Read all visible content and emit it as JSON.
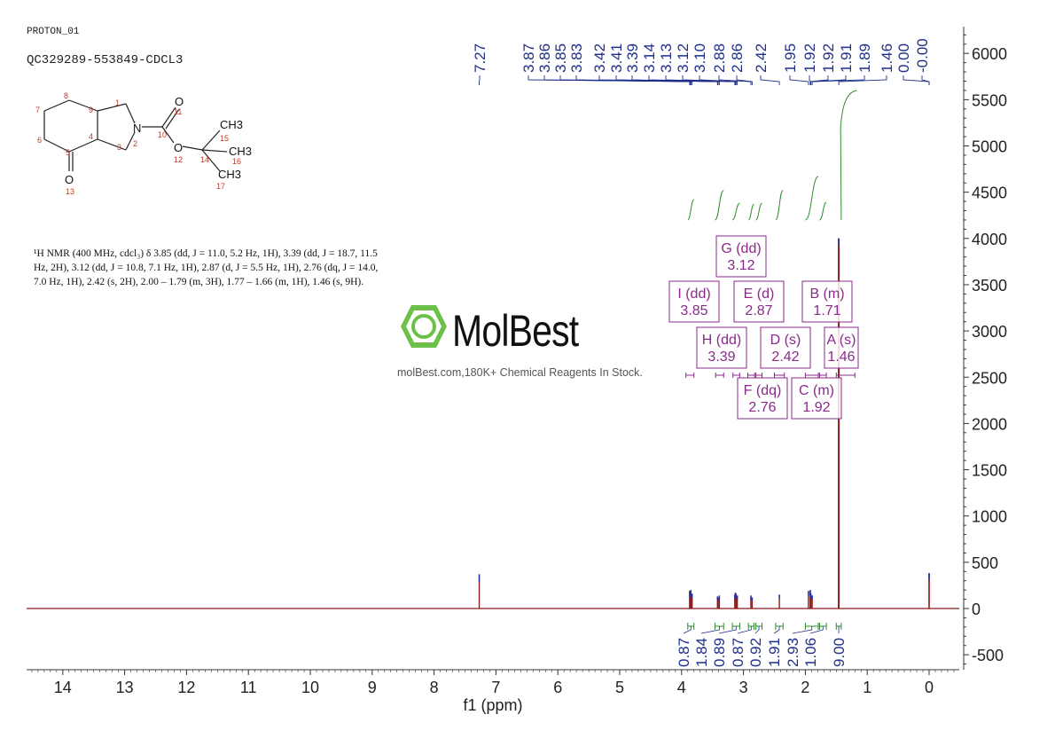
{
  "header": {
    "experiment": "PROTON_01",
    "sample": "QC329289-553849-CDCL3"
  },
  "description": "¹H NMR (400 MHz, cdcl₃) δ 3.85 (dd, J = 11.0, 5.2 Hz, 1H), 3.39 (dd, J = 18.7, 11.5 Hz, 2H), 3.12 (dd, J = 10.8, 7.1 Hz, 1H), 2.87 (d, J = 5.5 Hz, 1H), 2.76 (dq, J = 14.0, 7.0 Hz, 1H), 2.42 (s, 2H), 2.00 – 1.79 (m, 3H), 1.77 – 1.66 (m, 1H), 1.46 (s, 9H).",
  "watermark": {
    "brand": "MolBest",
    "tagline": "molBest.com,180K+ Chemical Reagents In Stock."
  },
  "structure": {
    "atoms": [
      {
        "label": "1"
      },
      {
        "label": "2"
      },
      {
        "label": "3"
      },
      {
        "label": "4"
      },
      {
        "label": "5"
      },
      {
        "label": "6"
      },
      {
        "label": "7"
      },
      {
        "label": "8"
      },
      {
        "label": "9"
      },
      {
        "label": "10"
      },
      {
        "label": "11"
      },
      {
        "label": "12"
      },
      {
        "label": "13"
      },
      {
        "label": "14"
      },
      {
        "label": "15"
      },
      {
        "label": "16"
      },
      {
        "label": "17"
      }
    ],
    "element_labels": [
      "N",
      "O",
      "O",
      "O",
      "CH3",
      "CH3",
      "CH3"
    ]
  },
  "colors": {
    "spectrum": "#8b1a1a",
    "integral": "#2e8b2e",
    "peak_labels": "#1f2f8a",
    "multiplet": "#8a2a8a",
    "brand_green": "#6cc04a"
  },
  "chart_data": {
    "type": "line",
    "title": "",
    "xlabel": "f1 (ppm)",
    "ylabel": "",
    "x_reversed": true,
    "xlim": [
      14.5,
      -0.5
    ],
    "ylim": [
      -650,
      6300
    ],
    "x_ticks": [
      14,
      13,
      12,
      11,
      10,
      9,
      8,
      7,
      6,
      5,
      4,
      3,
      2,
      1,
      0
    ],
    "y_ticks": [
      6000,
      5500,
      5000,
      4500,
      4000,
      3500,
      3000,
      2500,
      2000,
      1500,
      1000,
      500,
      0,
      -500
    ],
    "peaks": [
      {
        "ppm": 7.27,
        "height": 370
      },
      {
        "ppm": 3.87,
        "height": 190
      },
      {
        "ppm": 3.86,
        "height": 170
      },
      {
        "ppm": 3.85,
        "height": 200
      },
      {
        "ppm": 3.83,
        "height": 160
      },
      {
        "ppm": 3.42,
        "height": 130
      },
      {
        "ppm": 3.41,
        "height": 120
      },
      {
        "ppm": 3.39,
        "height": 140
      },
      {
        "ppm": 3.14,
        "height": 150
      },
      {
        "ppm": 3.13,
        "height": 170
      },
      {
        "ppm": 3.12,
        "height": 160
      },
      {
        "ppm": 3.1,
        "height": 140
      },
      {
        "ppm": 2.88,
        "height": 140
      },
      {
        "ppm": 2.86,
        "height": 120
      },
      {
        "ppm": 2.42,
        "height": 150
      },
      {
        "ppm": 1.95,
        "height": 190
      },
      {
        "ppm": 1.92,
        "height": 200
      },
      {
        "ppm": 1.92,
        "height": 180
      },
      {
        "ppm": 1.91,
        "height": 160
      },
      {
        "ppm": 1.89,
        "height": 140
      },
      {
        "ppm": 1.46,
        "height": 4000
      },
      {
        "ppm": 0.0,
        "height": 380
      },
      {
        "ppm": -0.0,
        "height": 380
      }
    ],
    "peak_labels": [
      "7.27",
      "3.87",
      "3.86",
      "3.85",
      "3.83",
      "3.42",
      "3.41",
      "3.39",
      "3.14",
      "3.13",
      "3.12",
      "3.10",
      "2.88",
      "2.86",
      "2.42",
      "1.95",
      "1.92",
      "1.92",
      "1.91",
      "1.89",
      "1.46",
      "0.00",
      "-0.00"
    ],
    "multiplets": [
      {
        "id": "G (dd)",
        "shift": "3.12",
        "ppm": 3.12
      },
      {
        "id": "I (dd)",
        "shift": "3.85",
        "ppm": 3.85
      },
      {
        "id": "E (d)",
        "shift": "2.87",
        "ppm": 2.87
      },
      {
        "id": "B (m)",
        "shift": "1.71",
        "ppm": 1.71
      },
      {
        "id": "H (dd)",
        "shift": "3.39",
        "ppm": 3.39
      },
      {
        "id": "D (s)",
        "shift": "2.42",
        "ppm": 2.42
      },
      {
        "id": "A (s)",
        "shift": "1.46",
        "ppm": 1.46
      },
      {
        "id": "F (dq)",
        "shift": "2.76",
        "ppm": 2.76
      },
      {
        "id": "C (m)",
        "shift": "1.92",
        "ppm": 1.92
      }
    ],
    "integrals": [
      {
        "label": "0.87",
        "from": 3.9,
        "to": 3.8
      },
      {
        "label": "1.84",
        "from": 3.46,
        "to": 3.32
      },
      {
        "label": "0.89",
        "from": 3.18,
        "to": 3.06
      },
      {
        "label": "0.87",
        "from": 2.92,
        "to": 2.83
      },
      {
        "label": "0.92",
        "from": 2.8,
        "to": 2.7
      },
      {
        "label": "1.91",
        "from": 2.48,
        "to": 2.36
      },
      {
        "label": "2.93",
        "from": 2.0,
        "to": 1.79
      },
      {
        "label": "1.06",
        "from": 1.77,
        "to": 1.66
      },
      {
        "label": "9.00",
        "from": 1.5,
        "to": 1.42
      }
    ]
  }
}
